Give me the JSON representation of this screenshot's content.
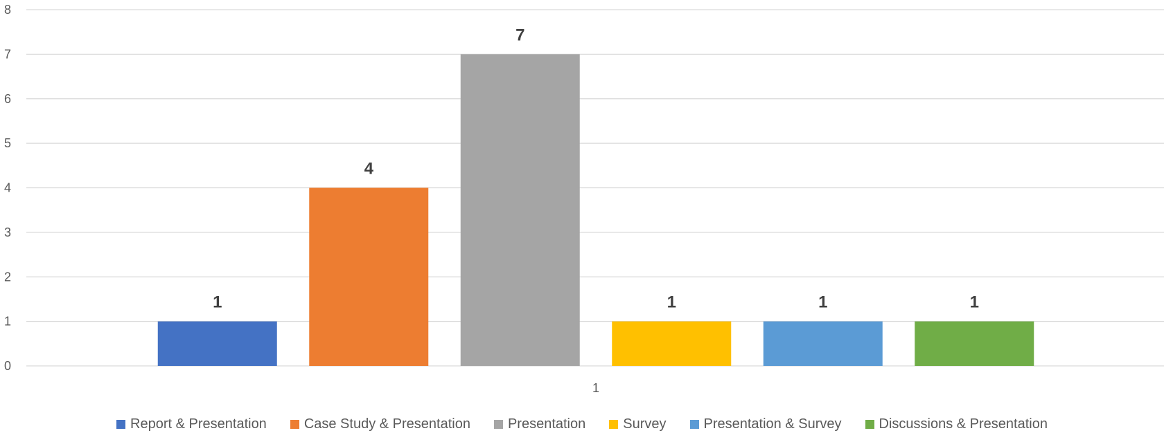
{
  "chart_data": {
    "type": "bar",
    "categories": [
      "1"
    ],
    "series": [
      {
        "name": "Report & Presentation",
        "values": [
          1
        ],
        "color": "#4472C4"
      },
      {
        "name": "Case Study & Presentation",
        "values": [
          4
        ],
        "color": "#ED7D31"
      },
      {
        "name": "Presentation",
        "values": [
          7
        ],
        "color": "#A5A5A5"
      },
      {
        "name": "Survey",
        "values": [
          1
        ],
        "color": "#FFC000"
      },
      {
        "name": "Presentation & Survey",
        "values": [
          1
        ],
        "color": "#5B9BD5"
      },
      {
        "name": "Discussions & Presentation",
        "values": [
          1
        ],
        "color": "#70AD47"
      }
    ],
    "ylim": [
      0,
      8
    ],
    "yticks": [
      "0",
      "1",
      "2",
      "3",
      "4",
      "5",
      "6",
      "7",
      "8"
    ],
    "title": "",
    "xlabel": "",
    "ylabel": "",
    "grid": true,
    "legend_position": "bottom",
    "data_labels": true
  }
}
